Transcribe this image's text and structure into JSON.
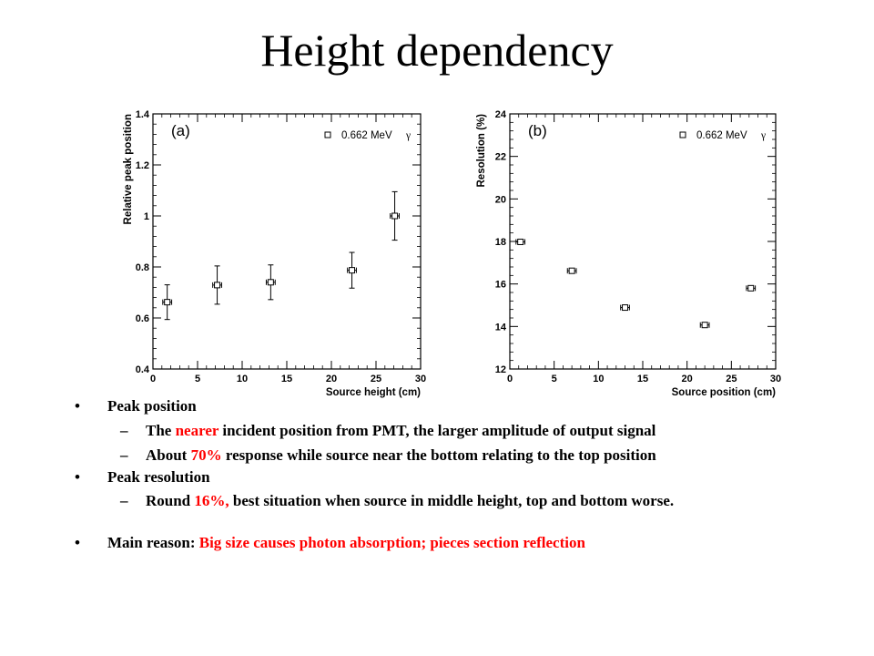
{
  "slide": {
    "title": "Height dependency"
  },
  "chart_data": [
    {
      "type": "scatter",
      "panel_label": "(a)",
      "legend": "0.662 MeV",
      "legend_symbol": "γ",
      "xlabel": "Source height (cm)",
      "ylabel": "Relative peak position",
      "xlim": [
        0,
        30
      ],
      "ylim": [
        0.4,
        1.4
      ],
      "xticks": [
        "0",
        "5",
        "10",
        "15",
        "20",
        "25",
        "30"
      ],
      "yticks": [
        "0.4",
        "0.6",
        "0.8",
        "1",
        "1.2",
        "1.4"
      ],
      "x": [
        1.6,
        7.2,
        13.2,
        22.3,
        27.1
      ],
      "y": [
        0.662,
        0.729,
        0.74,
        0.787,
        1.0
      ],
      "yerr": [
        0.068,
        0.075,
        0.068,
        0.07,
        0.095
      ],
      "xerr": [
        0.5,
        0.5,
        0.5,
        0.5,
        0.5
      ],
      "marker": "open-square",
      "grid": false,
      "legend_position": "top-right"
    },
    {
      "type": "scatter",
      "panel_label": "(b)",
      "legend": "0.662 MeV",
      "legend_symbol": "γ",
      "xlabel": "Source position (cm)",
      "ylabel": "Resolution (%)",
      "xlim": [
        0,
        30
      ],
      "ylim": [
        12,
        24
      ],
      "xticks": [
        "0",
        "5",
        "10",
        "15",
        "20",
        "25",
        "30"
      ],
      "yticks": [
        "12",
        "14",
        "16",
        "18",
        "20",
        "22",
        "24"
      ],
      "x": [
        1.2,
        7.0,
        13.0,
        22.0,
        27.2
      ],
      "y": [
        17.98,
        16.62,
        14.89,
        14.07,
        15.8
      ],
      "xerr": [
        0.5,
        0.5,
        0.5,
        0.5,
        0.5
      ],
      "marker": "open-square",
      "grid": false,
      "legend_position": "top-right"
    }
  ],
  "bullets": [
    {
      "level": 1,
      "marker": "•",
      "parts": [
        {
          "text": "Peak position",
          "color": "#000000"
        }
      ]
    },
    {
      "level": 2,
      "marker": "–",
      "parts": [
        {
          "text": "The ",
          "color": "#000000"
        },
        {
          "text": "nearer",
          "color": "#ff0000"
        },
        {
          "text": " incident position from PMT, the larger amplitude of output signal",
          "color": "#000000"
        }
      ]
    },
    {
      "level": 2,
      "marker": "–",
      "parts": [
        {
          "text": "About ",
          "color": "#000000"
        },
        {
          "text": "70%",
          "color": "#ff0000"
        },
        {
          "text": " response while source near the bottom relating to the top position",
          "color": "#000000"
        }
      ]
    },
    {
      "level": 1,
      "marker": "•",
      "parts": [
        {
          "text": "Peak resolution",
          "color": "#000000"
        }
      ]
    },
    {
      "level": 2,
      "marker": "–",
      "parts": [
        {
          "text": "Round ",
          "color": "#000000"
        },
        {
          "text": "16%,",
          "color": "#ff0000"
        },
        {
          "text": " best situation when source in middle height, top and bottom worse.",
          "color": "#000000"
        }
      ]
    },
    {
      "level": 1,
      "marker": "•",
      "parts": [
        {
          "text": "Main reason: ",
          "color": "#000000"
        },
        {
          "text": "Big size causes photon absorption; pieces section reflection",
          "color": "#ff0000"
        }
      ]
    }
  ]
}
